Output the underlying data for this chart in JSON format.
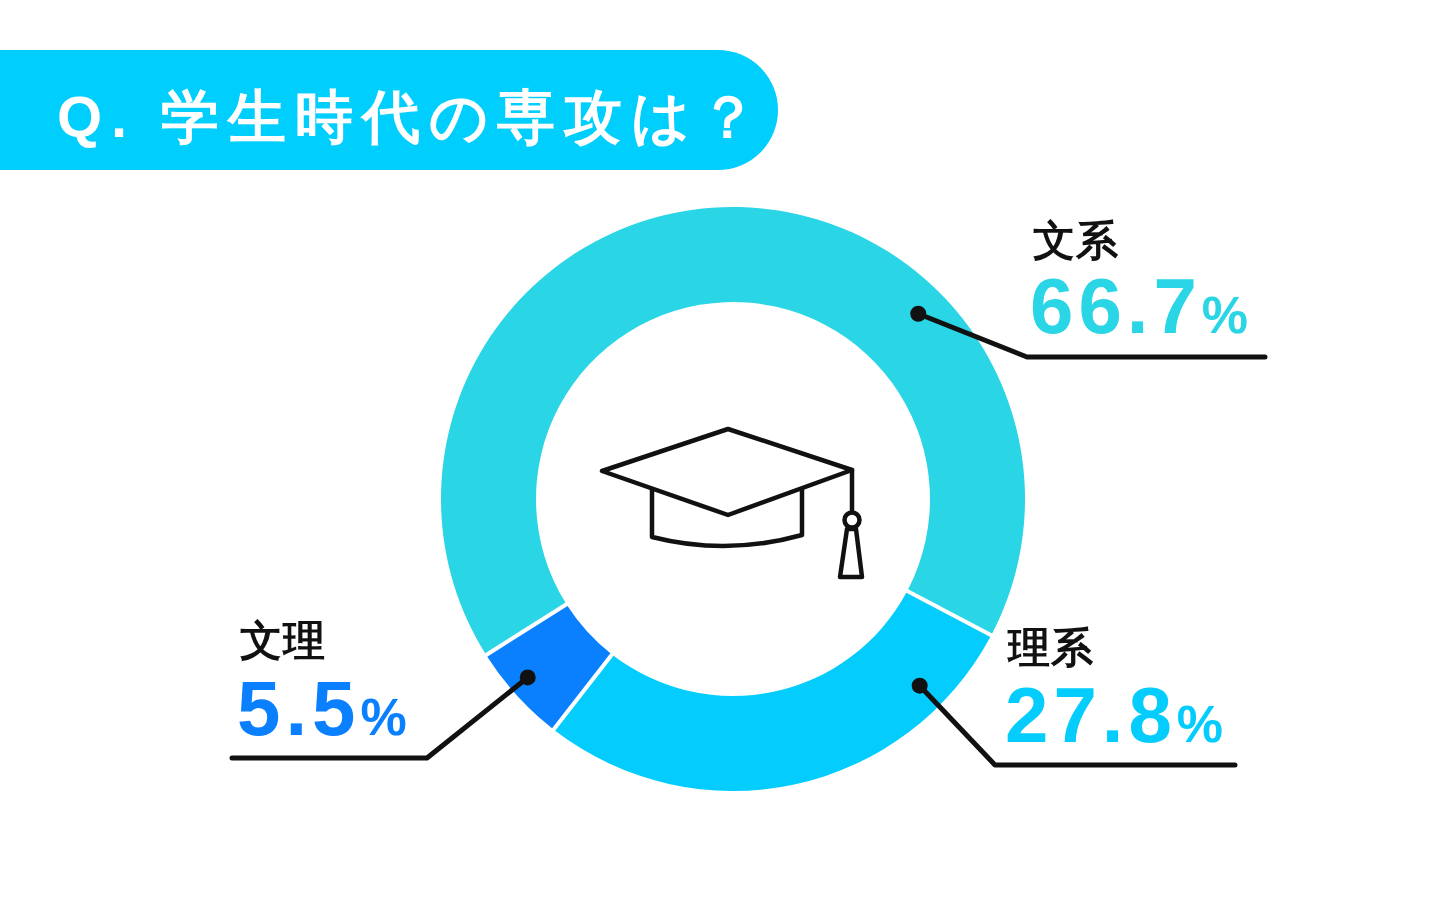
{
  "chart_data": {
    "type": "donut",
    "title": "Q. 学生時代の専攻は？",
    "categories": [
      "文系",
      "理系",
      "文理"
    ],
    "values": [
      66.7,
      27.8,
      5.5
    ],
    "colors": [
      "#2ad5e6",
      "#04cdfd",
      "#0a80ff"
    ],
    "value_labels": [
      "66.7%",
      "27.8%",
      "5.5%"
    ]
  }
}
